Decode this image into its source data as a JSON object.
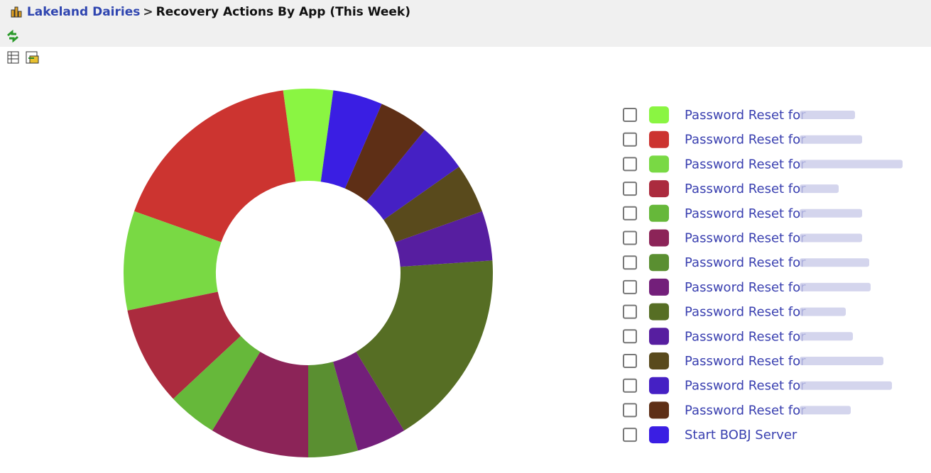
{
  "header": {
    "breadcrumb_link": "Lakeland Dairies",
    "separator": ">",
    "title": "Recovery Actions By App (This Week)"
  },
  "chart_data": {
    "type": "donut",
    "categories": [
      "Password Reset for",
      "Password Reset for",
      "Password Reset for",
      "Password Reset for",
      "Password Reset for",
      "Password Reset for",
      "Password Reset for",
      "Password Reset for",
      "Password Reset for",
      "Password Reset for",
      "Password Reset for",
      "Password Reset for",
      "Password Reset for",
      "Start BOBJ Server"
    ],
    "values": [
      1,
      4,
      2,
      2,
      1,
      2,
      1,
      1,
      4,
      1,
      1,
      1,
      1,
      1
    ],
    "colors": [
      "#8af542",
      "#cc3430",
      "#79d944",
      "#ab2b3e",
      "#66b83a",
      "#8c2458",
      "#5a8f31",
      "#731f7a",
      "#566e24",
      "#571ea0",
      "#594a1c",
      "#4520c4",
      "#5e2f16",
      "#3a1ee3"
    ]
  }
}
